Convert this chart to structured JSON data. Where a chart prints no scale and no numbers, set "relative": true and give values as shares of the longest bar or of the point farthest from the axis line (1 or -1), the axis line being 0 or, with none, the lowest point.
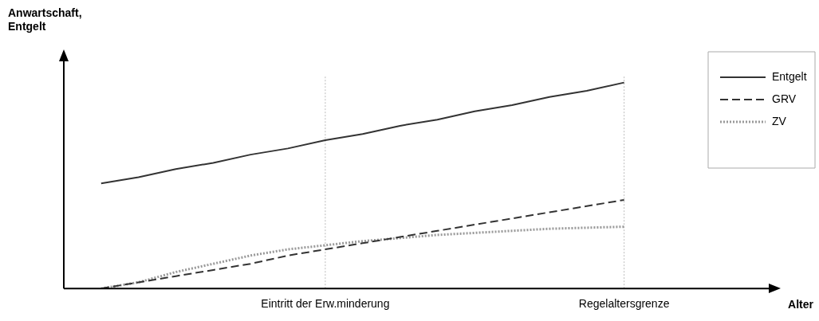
{
  "chart_data": {
    "type": "line",
    "relative": true,
    "xlabel": "Alter",
    "ylabel": "Anwartschaft,\nEntgelt",
    "categories": [
      null,
      null,
      null,
      null,
      null,
      null,
      null,
      "Eintritt der Erw.minderung",
      null,
      null,
      null,
      null,
      null,
      null,
      null,
      "Regelaltersgrenze",
      null,
      null,
      null,
      null
    ],
    "series": [
      {
        "name": "Entgelt",
        "color": "#333333",
        "line_style": "solid",
        "values": [
          null,
          0.51,
          0.54,
          0.58,
          0.61,
          0.65,
          0.68,
          0.72,
          0.75,
          0.79,
          0.82,
          0.86,
          0.89,
          0.93,
          0.96,
          1,
          null,
          null,
          null,
          null
        ]
      },
      {
        "name": "GRV",
        "color": "#333333",
        "line_style": "dashed",
        "values": [
          null,
          0,
          0.03,
          0.06,
          0.09,
          0.12,
          0.16,
          0.19,
          0.22,
          0.25,
          0.28,
          0.31,
          0.34,
          0.37,
          0.4,
          0.43,
          null,
          null,
          null,
          null
        ]
      },
      {
        "name": "ZV",
        "color": "#999999",
        "line_style": "dotted",
        "values": [
          null,
          0,
          0.03,
          0.08,
          0.12,
          0.16,
          0.19,
          0.21,
          0.23,
          0.245,
          0.26,
          0.27,
          0.28,
          0.29,
          0.295,
          0.3,
          null,
          null,
          null,
          null
        ]
      }
    ],
    "ref_lines": [
      {
        "axis": "x",
        "value": "Eintritt der Erw.minderung",
        "color": "#bbbbbb",
        "line_style": "dotted"
      },
      {
        "axis": "x",
        "value": "Regelaltersgrenze",
        "color": "#bbbbbb",
        "line_style": "dotted"
      }
    ],
    "grid": false,
    "legend": "top right",
    "marker": "none"
  }
}
